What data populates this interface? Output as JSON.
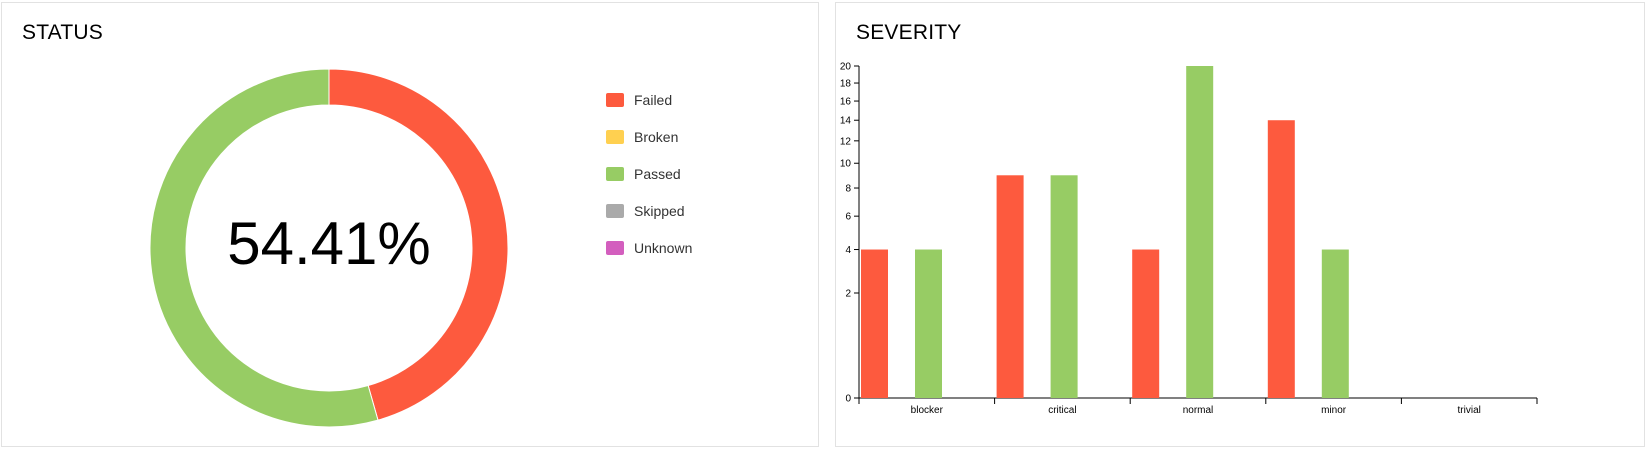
{
  "status": {
    "title": "STATUS",
    "percent_label": "54.41%",
    "legend": [
      {
        "label": "Failed",
        "color": "#fd5a3e"
      },
      {
        "label": "Broken",
        "color": "#ffd050"
      },
      {
        "label": "Passed",
        "color": "#97cc64"
      },
      {
        "label": "Skipped",
        "color": "#aaaaaa"
      },
      {
        "label": "Unknown",
        "color": "#d35ebe"
      }
    ]
  },
  "severity": {
    "title": "SEVERITY"
  },
  "chart_data": [
    {
      "type": "pie",
      "title": "STATUS",
      "center_label": "54.41%",
      "labels": [
        "Failed",
        "Broken",
        "Passed",
        "Skipped",
        "Unknown"
      ],
      "values": [
        31,
        0,
        37,
        0,
        0
      ],
      "colors": [
        "#fd5a3e",
        "#ffd050",
        "#97cc64",
        "#aaaaaa",
        "#d35ebe"
      ]
    },
    {
      "type": "bar",
      "title": "SEVERITY",
      "categories": [
        "blocker",
        "critical",
        "normal",
        "minor",
        "trivial"
      ],
      "series": [
        {
          "name": "Failed",
          "color": "#fd5a3e",
          "values": [
            4,
            9,
            4,
            14,
            0
          ]
        },
        {
          "name": "Passed",
          "color": "#97cc64",
          "values": [
            4,
            9,
            20,
            4,
            0
          ]
        }
      ],
      "yscale": "sqrt",
      "ylim": [
        0,
        20
      ],
      "yticks": [
        0,
        2,
        4,
        6,
        8,
        10,
        12,
        14,
        16,
        18,
        20
      ],
      "xlabel": "",
      "ylabel": ""
    }
  ]
}
